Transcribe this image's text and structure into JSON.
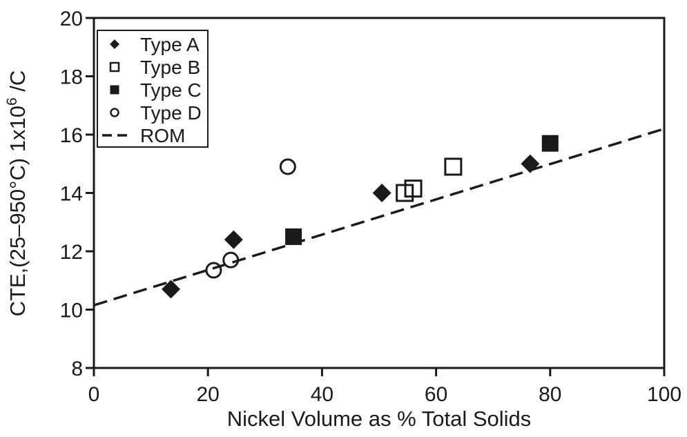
{
  "chart_data": {
    "type": "scatter",
    "title": "",
    "xlabel": "Nickel Volume as % Total Solids",
    "ylabel": {
      "base": "CTE,(25–950°C) 1x10",
      "sup": "6",
      "tail": " /C"
    },
    "xlim": [
      0,
      100
    ],
    "ylim": [
      8,
      20
    ],
    "xticks": [
      "0",
      "20",
      "40",
      "60",
      "80",
      "100"
    ],
    "yticks": [
      "8",
      "10",
      "12",
      "14",
      "16",
      "18",
      "20"
    ],
    "grid": false,
    "legend_position": "top-left",
    "series": [
      {
        "name": "Type A",
        "marker": "diamond-filled",
        "points": [
          [
            13.5,
            10.7
          ],
          [
            24.5,
            12.4
          ],
          [
            50.5,
            14.0
          ],
          [
            76.5,
            15.0
          ]
        ]
      },
      {
        "name": "Type B",
        "marker": "square-open",
        "points": [
          [
            54.5,
            14.0
          ],
          [
            56.0,
            14.15
          ],
          [
            63.0,
            14.9
          ]
        ]
      },
      {
        "name": "Type C",
        "marker": "square-filled",
        "points": [
          [
            35.0,
            12.5
          ],
          [
            80.0,
            15.7
          ]
        ]
      },
      {
        "name": "Type D",
        "marker": "circle-open",
        "points": [
          [
            21.0,
            11.35
          ],
          [
            24.0,
            11.7
          ],
          [
            34.0,
            14.9
          ]
        ]
      },
      {
        "name": "ROM",
        "marker": "dashed-line",
        "line": [
          [
            0,
            10.15
          ],
          [
            100,
            16.2
          ]
        ]
      }
    ],
    "colors": {
      "ink": "#1a1a1a",
      "background": "#ffffff"
    }
  }
}
